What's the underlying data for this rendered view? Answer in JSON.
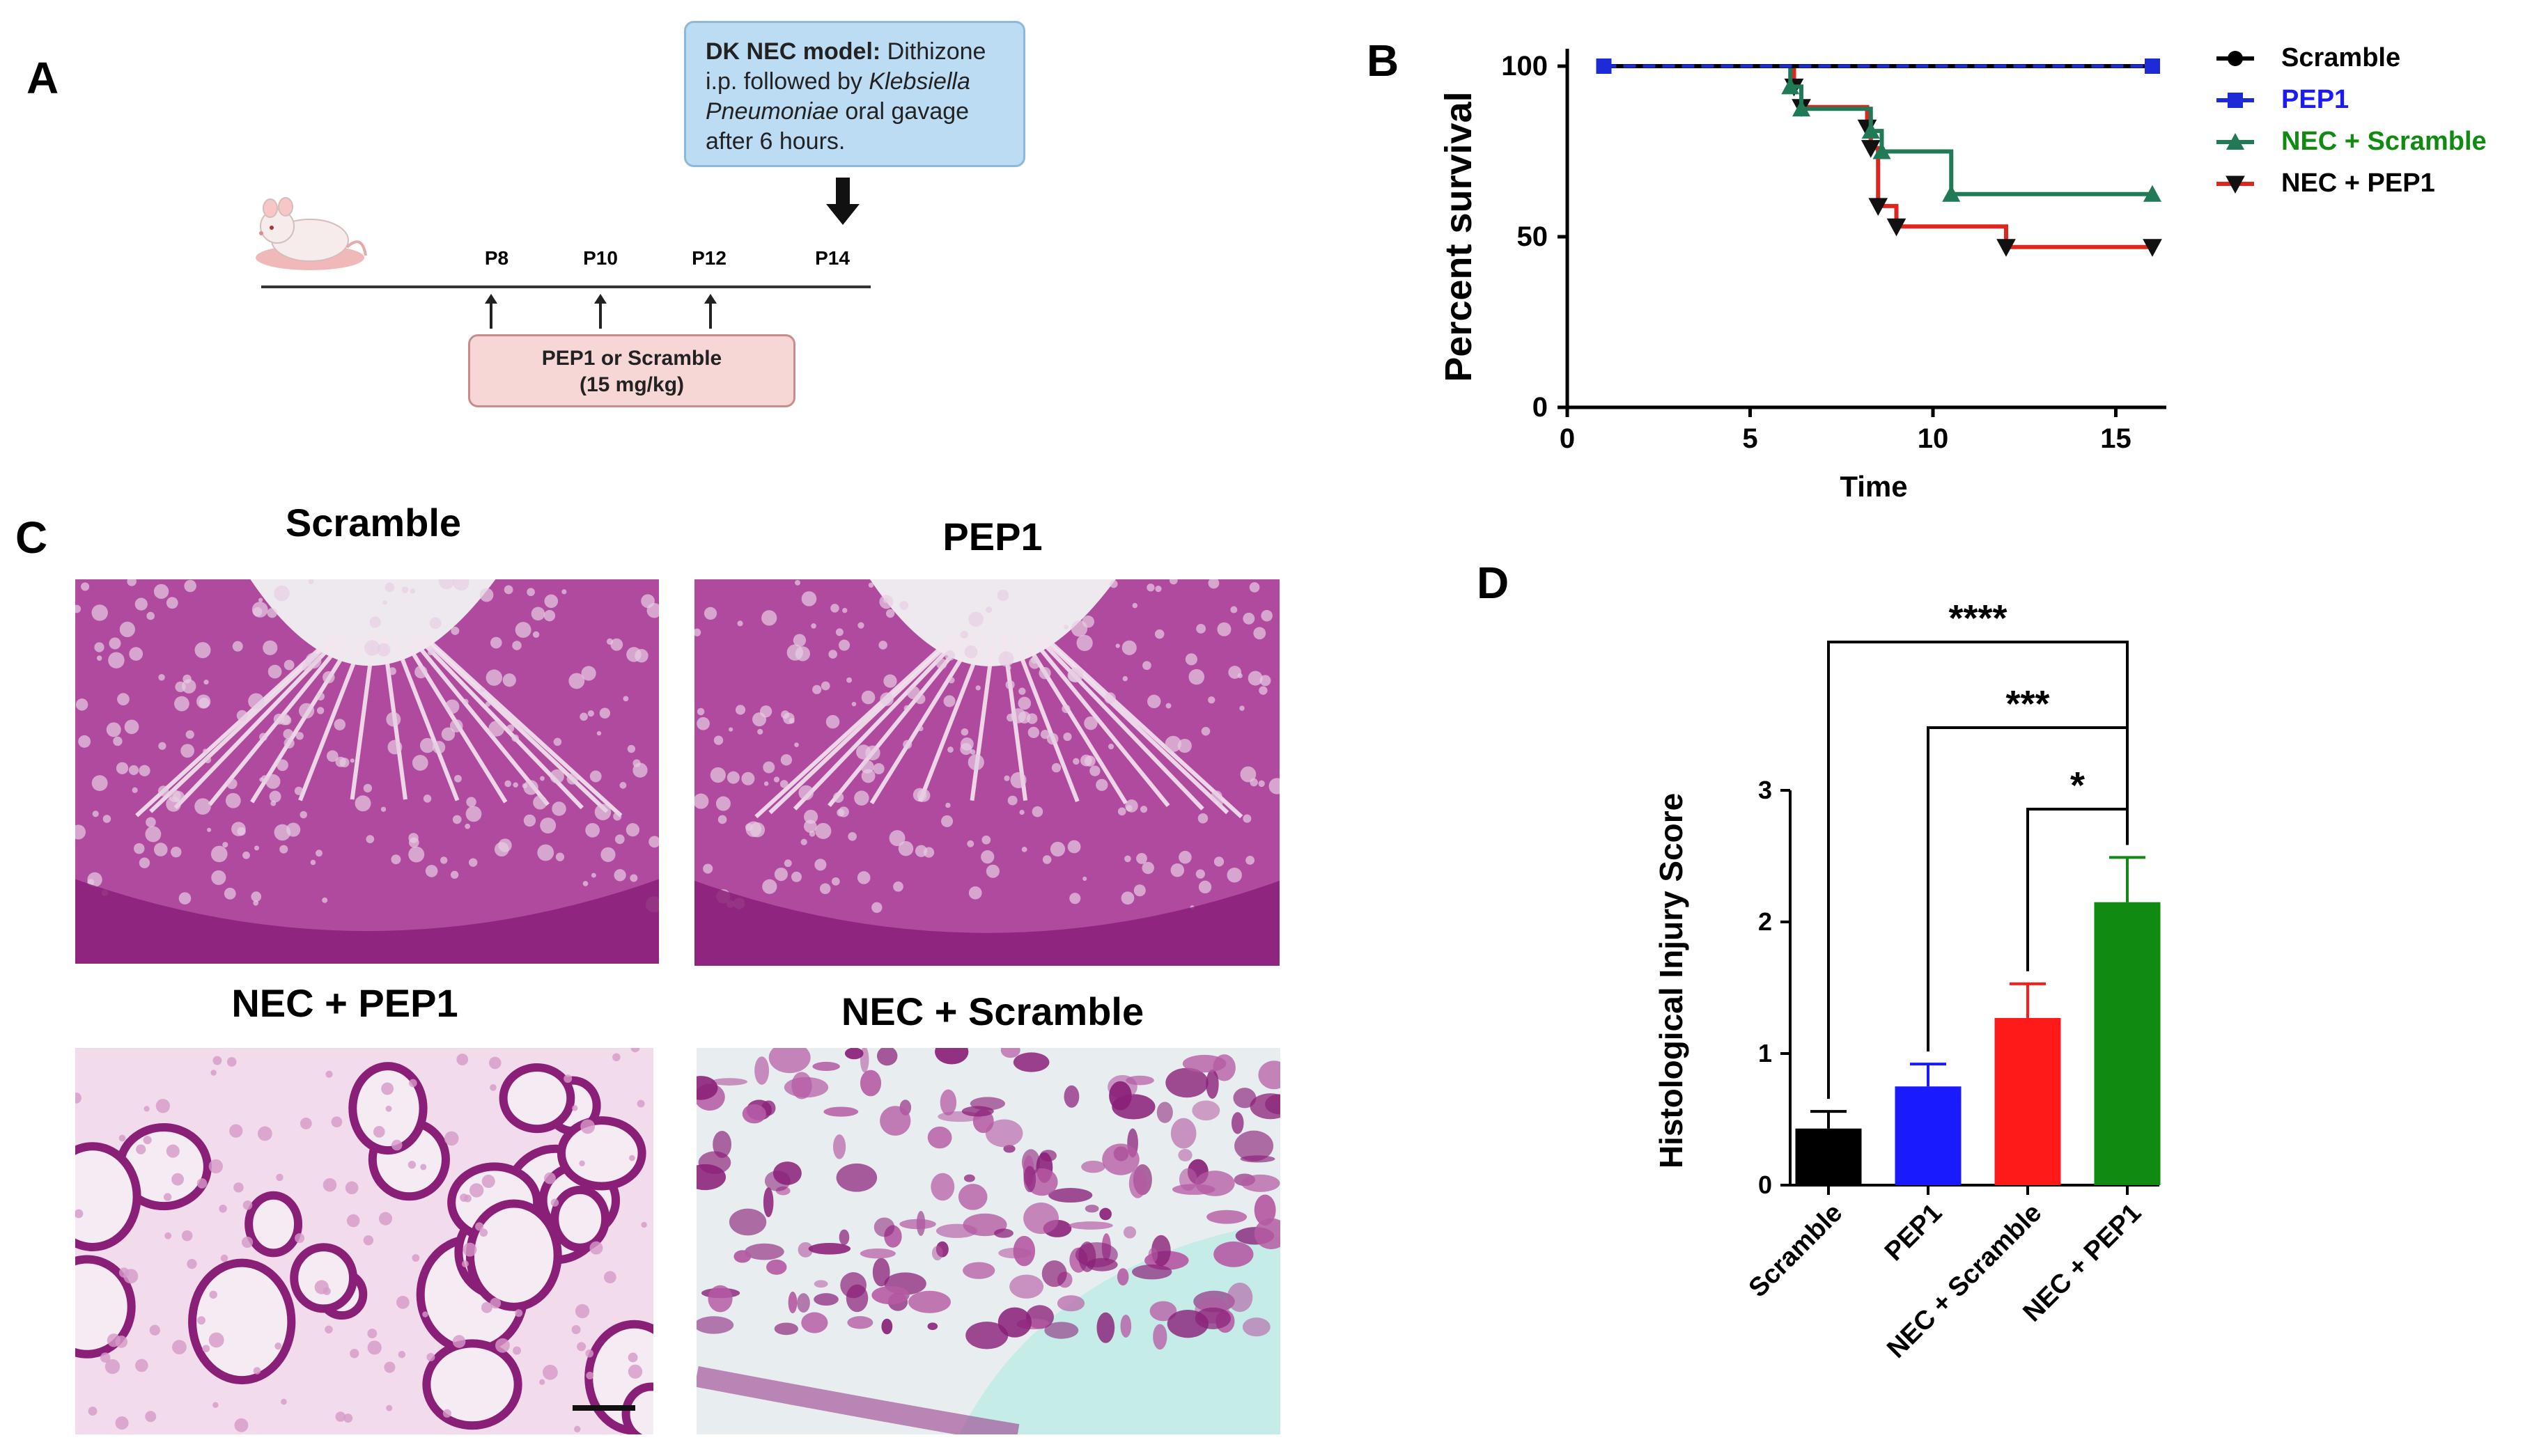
{
  "panels": {
    "a": "A",
    "b": "B",
    "c": "C",
    "d": "D"
  },
  "timeline": {
    "ticks": [
      "P8",
      "P10",
      "P12",
      "P14"
    ],
    "model_box": {
      "bold": "DK NEC model:",
      "line1_rest": " Dithizone",
      "line2_start": "i.p. followed by ",
      "line2_italic": "Klebsiella",
      "line3_italic": "Pneumoniae",
      "line3_rest": " oral gavage",
      "line4": "after 6 hours."
    },
    "treatment_box": {
      "line1": "PEP1 or Scramble",
      "line2": "(15 mg/kg)"
    }
  },
  "histology": {
    "titles": [
      "Scramble",
      "PEP1",
      "NEC + PEP1",
      "NEC + Scramble"
    ]
  },
  "colors": {
    "black": "#000000",
    "blue": "#1a1aff",
    "red": "#ff1a1a",
    "green": "#108a10",
    "survival_green": "#1f7a55",
    "survival_red": "#e0261c",
    "survival_blue": "#1d2bd6",
    "stain_dark": "#8a1f78",
    "stain_light": "#d69ac8"
  },
  "chart_data": [
    {
      "type": "line",
      "title": "",
      "xlabel": "Time",
      "ylabel": "Percent survival",
      "xlim": [
        0,
        16
      ],
      "ylim": [
        0,
        100
      ],
      "xticks": [
        0,
        5,
        10,
        15
      ],
      "yticks": [
        0,
        50,
        100
      ],
      "series": [
        {
          "name": "Scramble",
          "color_key": "black",
          "marker": "circle",
          "steps": [
            [
              1,
              100
            ],
            [
              16,
              100
            ]
          ],
          "markers": [
            [
              1,
              100
            ],
            [
              16,
              100
            ]
          ]
        },
        {
          "name": "PEP1",
          "color_key": "survival_blue",
          "marker": "square",
          "steps": [
            [
              1,
              100
            ],
            [
              16,
              100
            ]
          ],
          "markers": [
            [
              1,
              100
            ],
            [
              16,
              100
            ]
          ]
        },
        {
          "name": "NEC + Scramble",
          "color_key": "survival_green",
          "marker": "triangle-up",
          "steps": [
            [
              1,
              100
            ],
            [
              6.1,
              100
            ],
            [
              6.1,
              94
            ],
            [
              6.4,
              94
            ],
            [
              6.4,
              87.5
            ],
            [
              8.3,
              87.5
            ],
            [
              8.3,
              81
            ],
            [
              8.6,
              81
            ],
            [
              8.6,
              75
            ],
            [
              10.5,
              75
            ],
            [
              10.5,
              62.5
            ],
            [
              16,
              62.5
            ]
          ],
          "markers": [
            [
              6.1,
              94
            ],
            [
              6.4,
              87.5
            ],
            [
              8.3,
              81
            ],
            [
              8.6,
              75
            ],
            [
              10.5,
              62.5
            ],
            [
              16,
              62.5
            ]
          ]
        },
        {
          "name": "NEC + PEP1",
          "color_key": "survival_red",
          "marker": "triangle-down",
          "steps": [
            [
              1,
              100
            ],
            [
              6.2,
              100
            ],
            [
              6.2,
              94
            ],
            [
              6.4,
              94
            ],
            [
              6.4,
              88
            ],
            [
              8.2,
              88
            ],
            [
              8.2,
              82
            ],
            [
              8.3,
              82
            ],
            [
              8.3,
              76
            ],
            [
              8.5,
              76
            ],
            [
              8.5,
              59
            ],
            [
              9,
              59
            ],
            [
              9,
              53
            ],
            [
              12,
              53
            ],
            [
              12,
              47
            ],
            [
              16,
              47
            ]
          ],
          "markers": [
            [
              6.2,
              94
            ],
            [
              6.4,
              88
            ],
            [
              8.2,
              82
            ],
            [
              8.3,
              76
            ],
            [
              8.5,
              59
            ],
            [
              9,
              53
            ],
            [
              12,
              47
            ],
            [
              16,
              47
            ]
          ]
        }
      ],
      "legend": [
        "Scramble",
        "PEP1",
        "NEC + Scramble",
        "NEC + PEP1"
      ],
      "legend_colors": [
        "black",
        "blue",
        "green",
        "black"
      ]
    },
    {
      "type": "bar",
      "title": "",
      "xlabel": "",
      "ylabel": "Histological Injury Score",
      "categories": [
        "Scramble",
        "PEP1",
        "NEC + Scramble",
        "NEC + PEP1"
      ],
      "values": [
        0.43,
        0.75,
        1.27,
        2.15
      ],
      "errors": [
        0.13,
        0.17,
        0.26,
        0.34
      ],
      "bar_color_keys": [
        "black",
        "blue",
        "red",
        "green"
      ],
      "ylim": [
        0,
        3
      ],
      "yticks": [
        0,
        1,
        2,
        3
      ],
      "significance": [
        {
          "from": 0,
          "to": 3,
          "label": "****"
        },
        {
          "from": 1,
          "to": 3,
          "label": "***"
        },
        {
          "from": 2,
          "to": 3,
          "label": "*"
        }
      ]
    }
  ]
}
